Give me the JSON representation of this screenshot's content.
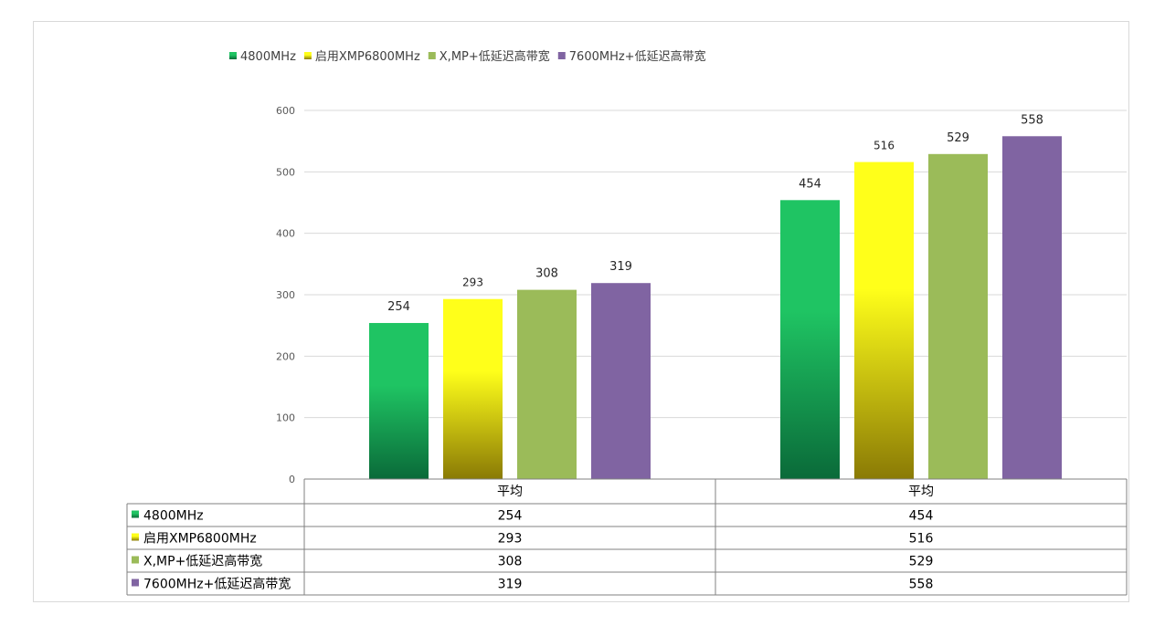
{
  "chart_data": {
    "type": "bar",
    "categories": [
      "平均",
      "平均"
    ],
    "series": [
      {
        "name": "4800MHz",
        "values": [
          254,
          454
        ],
        "color": "#1fc463",
        "color_dark": "#0a6a39"
      },
      {
        "name": "启用XMP6800MHz",
        "values": [
          293,
          516
        ],
        "color": "#ffff1a",
        "color_dark": "#8a7a05"
      },
      {
        "name": "X,MP+低延迟高带宽",
        "values": [
          308,
          529
        ],
        "color": "#9bbb59"
      },
      {
        "name": "7600MHz+低延迟高带宽",
        "values": [
          319,
          558
        ],
        "color": "#8064a2"
      }
    ],
    "y_ticks": [
      "0",
      "100",
      "200",
      "300",
      "400",
      "500",
      "600"
    ],
    "ylim": [
      0,
      600
    ],
    "grid": true,
    "legend_position": "top-left",
    "data_table": true
  }
}
